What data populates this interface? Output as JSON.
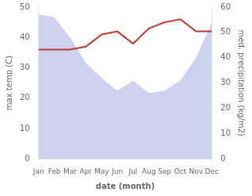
{
  "chart_data": {
    "type": "line",
    "categories": [
      "Jan",
      "Feb",
      "Mar",
      "Apr",
      "May",
      "Jun",
      "Jul",
      "Aug",
      "Sep",
      "Oct",
      "Nov",
      "Dec"
    ],
    "xlabel": "date (month)",
    "ylabel": "max temp (C)",
    "y2label": "med. precipitation (kg/m2)",
    "series": [
      {
        "type": "area",
        "color": "#b8c0e8",
        "axis": "y2",
        "values": [
          57,
          56,
          48,
          38,
          32,
          27,
          31,
          26,
          27,
          31,
          40,
          54
        ]
      },
      {
        "type": "line",
        "color": "#c0392b",
        "values": [
          36,
          36,
          36,
          37,
          41,
          42,
          38,
          43,
          45,
          46,
          42,
          42
        ]
      }
    ],
    "ylim": [
      0,
      50
    ],
    "yticks": [
      0,
      10,
      20,
      30,
      40,
      50
    ],
    "y2lim": [
      0,
      60
    ],
    "y2ticks": [
      0,
      10,
      20,
      30,
      40,
      50,
      60
    ],
    "grid": false
  }
}
